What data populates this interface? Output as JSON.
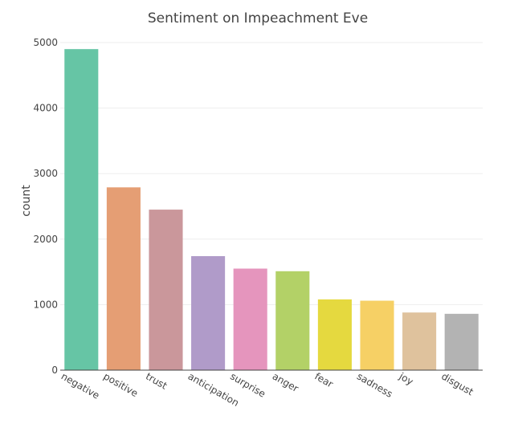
{
  "chart_data": {
    "type": "bar",
    "title": "Sentiment on Impeachment Eve",
    "xlabel": "",
    "ylabel": "count",
    "categories": [
      "negative",
      "positive",
      "trust",
      "anticipation",
      "surprise",
      "anger",
      "fear",
      "sadness",
      "joy",
      "disgust"
    ],
    "values": [
      4900,
      2790,
      2450,
      1740,
      1550,
      1510,
      1080,
      1060,
      880,
      860
    ],
    "colors": [
      "#66c5a5",
      "#e59e74",
      "#ca979b",
      "#b09bc9",
      "#e595bd",
      "#b3d167",
      "#e5d93f",
      "#f6d065",
      "#dfc29d",
      "#b3b3b3"
    ],
    "yticks": [
      0,
      1000,
      2000,
      3000,
      4000,
      5000
    ],
    "ylim": [
      0,
      5200
    ],
    "grid": true,
    "legend": "none"
  }
}
